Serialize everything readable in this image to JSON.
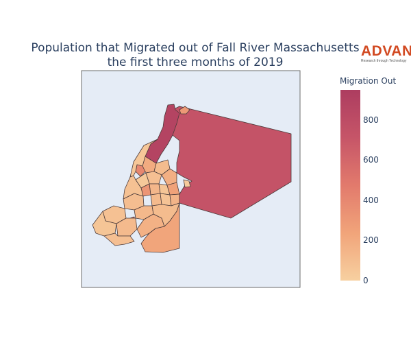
{
  "title_line1": "Population that Migrated out of Fall River Massachusetts",
  "title_line2": "the first three months of 2019",
  "logo": {
    "name": "ADVAN",
    "tagline": "Research through Technology"
  },
  "colorbar": {
    "title": "Migration Out",
    "min": 0,
    "max": 950,
    "ticks": [
      "0",
      "200",
      "400",
      "600",
      "800"
    ],
    "tick_values": [
      0,
      200,
      400,
      600,
      800
    ],
    "colors": [
      "#f7d0a0",
      "#f1a47a",
      "#e27a6c",
      "#c65568",
      "#ad3d60"
    ]
  },
  "chart_data": {
    "type": "choropleth",
    "title": "Population that Migrated out of Fall River Massachusetts the first three months of 2019",
    "colorbar_title": "Migration Out",
    "range": [
      0,
      950
    ],
    "regions": [
      {
        "name": "east",
        "value": 730
      },
      {
        "name": "north-strip",
        "value": 880
      },
      {
        "name": "north-nub",
        "value": 300
      },
      {
        "name": "southeast",
        "value": 230
      },
      {
        "name": "nw-small",
        "value": 400
      },
      {
        "name": "center-dark",
        "value": 650
      },
      {
        "name": "center-red",
        "value": 600
      },
      {
        "name": "central-1",
        "value": 200
      },
      {
        "name": "central-2",
        "value": 110
      },
      {
        "name": "central-3",
        "value": 180
      },
      {
        "name": "central-4",
        "value": 90
      },
      {
        "name": "central-5",
        "value": 140
      },
      {
        "name": "central-6",
        "value": 60
      },
      {
        "name": "central-7",
        "value": 250
      },
      {
        "name": "central-8",
        "value": 40
      },
      {
        "name": "central-9",
        "value": 320
      },
      {
        "name": "central-10",
        "value": 120
      },
      {
        "name": "central-11",
        "value": 70
      },
      {
        "name": "central-12",
        "value": 150
      },
      {
        "name": "sw-1",
        "value": 100
      },
      {
        "name": "sw-2",
        "value": 80
      },
      {
        "name": "sw-3",
        "value": 130
      },
      {
        "name": "sw-4",
        "value": 60
      },
      {
        "name": "south-1",
        "value": 120
      },
      {
        "name": "south-2",
        "value": 90
      },
      {
        "name": "south-3",
        "value": 170
      },
      {
        "name": "nw-1",
        "value": 50
      },
      {
        "name": "nw-2",
        "value": 80
      },
      {
        "name": "nw-3",
        "value": 110
      },
      {
        "name": "islet",
        "value": 30
      }
    ]
  }
}
